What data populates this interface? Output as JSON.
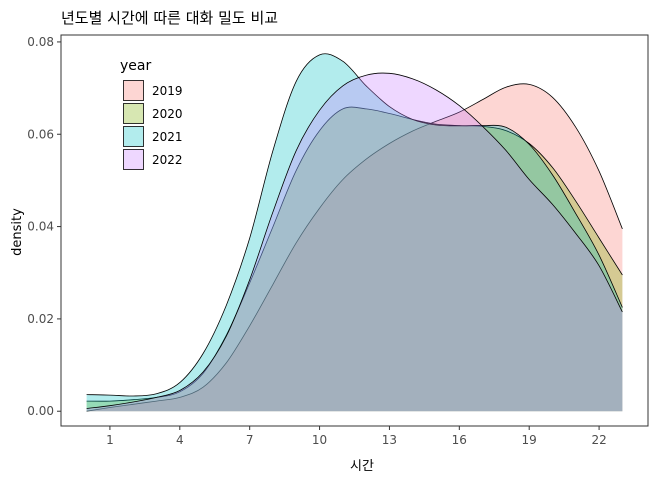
{
  "chart_data": {
    "type": "area",
    "title": "년도별 시간에 따른 대화 밀도 비교",
    "xlabel": "시간",
    "ylabel": "density",
    "xlim": [
      -1.1,
      24.1
    ],
    "ylim": [
      -0.0032,
      0.0815
    ],
    "x_ticks": [
      1,
      4,
      7,
      10,
      13,
      16,
      19,
      22
    ],
    "x_tick_labels": [
      "1",
      "4",
      "7",
      "10",
      "13",
      "16",
      "19",
      "22"
    ],
    "y_ticks": [
      0.0,
      0.02,
      0.04,
      0.06,
      0.08
    ],
    "y_tick_labels": [
      "0.00",
      "0.02",
      "0.04",
      "0.06",
      "0.08"
    ],
    "grid": false,
    "legend": {
      "title": "year",
      "position": "top-left"
    },
    "fill_opacity": 0.3,
    "series": [
      {
        "name": "2019",
        "color": "#F8766D",
        "x": [
          0,
          1,
          2,
          3,
          4,
          5,
          6,
          7,
          8,
          9,
          10,
          11,
          12,
          13,
          14,
          15,
          16,
          17,
          18,
          19,
          20,
          21,
          22,
          23
        ],
        "y": [
          0.0,
          0.0008,
          0.0015,
          0.0022,
          0.003,
          0.0052,
          0.0105,
          0.0185,
          0.0275,
          0.0365,
          0.044,
          0.0502,
          0.0546,
          0.058,
          0.0607,
          0.0628,
          0.0648,
          0.0675,
          0.0702,
          0.0708,
          0.068,
          0.0615,
          0.052,
          0.0395
        ]
      },
      {
        "name": "2020",
        "color": "#7CAE00",
        "x": [
          0,
          1,
          2,
          3,
          4,
          5,
          6,
          7,
          8,
          9,
          10,
          11,
          12,
          13,
          14,
          15,
          16,
          17,
          18,
          19,
          20,
          21,
          22,
          23
        ],
        "y": [
          0.0022,
          0.0022,
          0.0025,
          0.003,
          0.0042,
          0.0082,
          0.0165,
          0.0278,
          0.04,
          0.0522,
          0.0608,
          0.0655,
          0.0655,
          0.0645,
          0.0632,
          0.0622,
          0.0619,
          0.0617,
          0.0608,
          0.058,
          0.0528,
          0.0455,
          0.0375,
          0.0295
        ]
      },
      {
        "name": "2021",
        "color": "#00BFC4",
        "x": [
          0,
          1,
          2,
          3,
          4,
          5,
          6,
          7,
          8,
          9,
          10,
          11,
          12,
          13,
          14,
          15,
          16,
          17,
          18,
          19,
          20,
          21,
          22,
          23
        ],
        "y": [
          0.0036,
          0.0035,
          0.0033,
          0.0038,
          0.0062,
          0.0125,
          0.023,
          0.0375,
          0.0565,
          0.0715,
          0.0772,
          0.0758,
          0.0705,
          0.066,
          0.0632,
          0.062,
          0.0618,
          0.0619,
          0.0615,
          0.0578,
          0.0512,
          0.0428,
          0.0338,
          0.0225
        ]
      },
      {
        "name": "2022",
        "color": "#C77CFF",
        "x": [
          0,
          1,
          2,
          3,
          4,
          5,
          6,
          7,
          8,
          9,
          10,
          11,
          12,
          13,
          14,
          15,
          16,
          17,
          18,
          19,
          20,
          21,
          22,
          23
        ],
        "y": [
          0.0006,
          0.0012,
          0.002,
          0.003,
          0.0045,
          0.0085,
          0.0163,
          0.0285,
          0.0432,
          0.0565,
          0.0652,
          0.0705,
          0.0728,
          0.0732,
          0.072,
          0.0696,
          0.0662,
          0.0617,
          0.0565,
          0.0502,
          0.0448,
          0.0385,
          0.0315,
          0.0215
        ]
      }
    ]
  }
}
